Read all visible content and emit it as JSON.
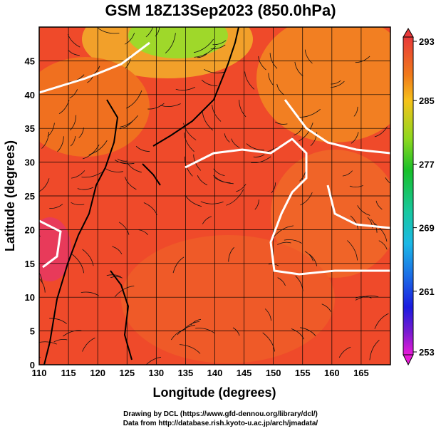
{
  "title": "GSM 18Z13Sep2023 (850.0hPa)",
  "map": {
    "x_label": "Longitude (degrees)",
    "y_label": "Latitude  (degrees)",
    "x_ticks": [
      "110",
      "115",
      "120",
      "125",
      "130",
      "135",
      "140",
      "145",
      "150",
      "155",
      "160",
      "165"
    ],
    "x_tick_values": [
      110,
      115,
      120,
      125,
      130,
      135,
      140,
      145,
      150,
      155,
      160,
      165
    ],
    "y_ticks": [
      "0",
      "5",
      "10",
      "15",
      "20",
      "25",
      "30",
      "35",
      "40",
      "45"
    ],
    "y_tick_values": [
      0,
      5,
      10,
      15,
      20,
      25,
      30,
      35,
      40,
      45
    ],
    "lon_range": [
      110,
      170
    ],
    "lat_range": [
      0,
      50
    ],
    "grid": true
  },
  "colorbar": {
    "labels": [
      "293",
      "285",
      "277",
      "269",
      "261",
      "253"
    ],
    "values": [
      293,
      285,
      277,
      269,
      261,
      253
    ],
    "colors": [
      "#e8393a",
      "#f07a1a",
      "#f6c21a",
      "#8ed81e",
      "#18c02a",
      "#18c8a0",
      "#1ab8e6",
      "#1a6ee6",
      "#1a1ae0",
      "#7a1ad0",
      "#e81ad8"
    ]
  },
  "footer": {
    "line1": "Drawing by DCL (https://www.gfd-dennou.org/library/dcl/)",
    "line2": "Data from http://database.rish.kyoto-u.ac.jp/arch/jmadata/"
  }
}
